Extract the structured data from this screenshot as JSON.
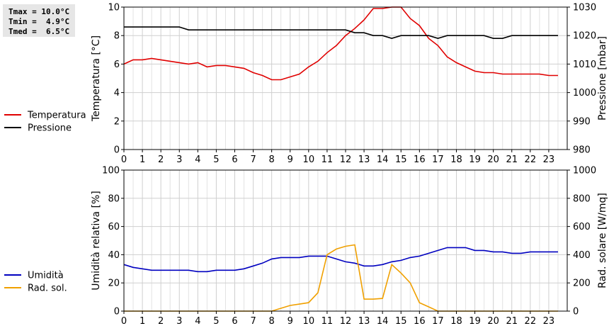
{
  "stats": [
    {
      "label": "Tmax",
      "value": "10.0°C"
    },
    {
      "label": "Tmin",
      "value": "4.9°C"
    },
    {
      "label": "Tmed",
      "value": "6.5°C"
    }
  ],
  "chart_data": [
    {
      "type": "line",
      "xlabel": "",
      "xlim": [
        0,
        24
      ],
      "xticks": [
        "0",
        "1",
        "2",
        "3",
        "4",
        "5",
        "6",
        "7",
        "8",
        "9",
        "10",
        "11",
        "12",
        "13",
        "14",
        "15",
        "16",
        "17",
        "18",
        "19",
        "20",
        "21",
        "22",
        "23"
      ],
      "ylabel_left": "Temperatura [°C]",
      "ylim_left": [
        0,
        10
      ],
      "yticks_left": [
        "0",
        "2",
        "4",
        "6",
        "8",
        "10"
      ],
      "ylabel_right": "Pressione [mbar]",
      "ylim_right": [
        980,
        1030
      ],
      "yticks_right": [
        "980",
        "990",
        "1000",
        "1010",
        "1020",
        "1030"
      ],
      "grid": true,
      "legend_position": "left",
      "series": [
        {
          "name": "Temperatura",
          "axis": "left",
          "color": "#e00000",
          "x": [
            0,
            0.5,
            1,
            1.5,
            2,
            2.5,
            3,
            3.5,
            4,
            4.5,
            5,
            5.5,
            6,
            6.5,
            7,
            7.5,
            8,
            8.5,
            9,
            9.5,
            10,
            10.5,
            11,
            11.5,
            12,
            12.5,
            13,
            13.5,
            14,
            14.5,
            15,
            15.5,
            16,
            16.5,
            17,
            17.5,
            18,
            18.5,
            19,
            19.5,
            20,
            20.5,
            21,
            21.5,
            22,
            22.5,
            23,
            23.5
          ],
          "values": [
            6.0,
            6.3,
            6.3,
            6.4,
            6.3,
            6.2,
            6.1,
            6.0,
            6.1,
            5.8,
            5.9,
            5.9,
            5.8,
            5.7,
            5.4,
            5.2,
            4.9,
            4.9,
            5.1,
            5.3,
            5.8,
            6.2,
            6.8,
            7.3,
            8.0,
            8.5,
            9.1,
            9.9,
            9.9,
            10.0,
            10.0,
            9.2,
            8.7,
            7.8,
            7.3,
            6.5,
            6.1,
            5.8,
            5.5,
            5.4,
            5.4,
            5.3,
            5.3,
            5.3,
            5.3,
            5.3,
            5.2,
            5.2
          ]
        },
        {
          "name": "Pressione",
          "axis": "right",
          "color": "#000000",
          "x": [
            0,
            0.5,
            1,
            1.5,
            2,
            2.5,
            3,
            3.5,
            4,
            4.5,
            5,
            5.5,
            6,
            6.5,
            7,
            7.5,
            8,
            8.5,
            9,
            9.5,
            10,
            10.5,
            11,
            11.5,
            12,
            12.5,
            13,
            13.5,
            14,
            14.5,
            15,
            15.5,
            16,
            16.5,
            17,
            17.5,
            18,
            18.5,
            19,
            19.5,
            20,
            20.5,
            21,
            21.5,
            22,
            22.5,
            23,
            23.5
          ],
          "values": [
            1023,
            1023,
            1023,
            1023,
            1023,
            1023,
            1023,
            1022,
            1022,
            1022,
            1022,
            1022,
            1022,
            1022,
            1022,
            1022,
            1022,
            1022,
            1022,
            1022,
            1022,
            1022,
            1022,
            1022,
            1022,
            1021,
            1021,
            1020,
            1020,
            1019,
            1020,
            1020,
            1020,
            1020,
            1019,
            1020,
            1020,
            1020,
            1020,
            1020,
            1019,
            1019,
            1020,
            1020,
            1020,
            1020,
            1020,
            1020
          ]
        }
      ]
    },
    {
      "type": "line",
      "xlabel": "",
      "xlim": [
        0,
        24
      ],
      "xticks": [
        "0",
        "1",
        "2",
        "3",
        "4",
        "5",
        "6",
        "7",
        "8",
        "9",
        "10",
        "11",
        "12",
        "13",
        "14",
        "15",
        "16",
        "17",
        "18",
        "19",
        "20",
        "21",
        "22",
        "23"
      ],
      "ylabel_left": "Umidità relativa [%]",
      "ylim_left": [
        0,
        100
      ],
      "yticks_left": [
        "0",
        "20",
        "40",
        "60",
        "80",
        "100"
      ],
      "ylabel_right": "Rad. solare [W/mq]",
      "ylim_right": [
        0,
        1000
      ],
      "yticks_right": [
        "0",
        "200",
        "400",
        "600",
        "800",
        "1000"
      ],
      "grid": true,
      "legend_position": "left",
      "series": [
        {
          "name": "Umidità",
          "axis": "left",
          "color": "#0000c0",
          "x": [
            0,
            0.5,
            1,
            1.5,
            2,
            2.5,
            3,
            3.5,
            4,
            4.5,
            5,
            5.5,
            6,
            6.5,
            7,
            7.5,
            8,
            8.5,
            9,
            9.5,
            10,
            10.5,
            11,
            11.5,
            12,
            12.5,
            13,
            13.5,
            14,
            14.5,
            15,
            15.5,
            16,
            16.5,
            17,
            17.5,
            18,
            18.5,
            19,
            19.5,
            20,
            20.5,
            21,
            21.5,
            22,
            22.5,
            23,
            23.5
          ],
          "values": [
            33,
            31,
            30,
            29,
            29,
            29,
            29,
            29,
            28,
            28,
            29,
            29,
            29,
            30,
            32,
            34,
            37,
            38,
            38,
            38,
            39,
            39,
            39,
            37,
            35,
            34,
            32,
            32,
            33,
            35,
            36,
            38,
            39,
            41,
            43,
            45,
            45,
            45,
            43,
            43,
            42,
            42,
            41,
            41,
            42,
            42,
            42,
            42
          ]
        },
        {
          "name": "Rad. sol.",
          "axis": "right",
          "color": "#f0a000",
          "x": [
            0,
            0.5,
            1,
            1.5,
            2,
            2.5,
            3,
            3.5,
            4,
            4.5,
            5,
            5.5,
            6,
            6.5,
            7,
            7.5,
            8,
            8.5,
            9,
            9.5,
            10,
            10.5,
            11,
            11.5,
            12,
            12.5,
            13,
            13.5,
            14,
            14.5,
            15,
            15.5,
            16,
            16.5,
            17,
            17.5,
            18,
            18.5,
            19,
            19.5,
            20,
            20.5,
            21,
            21.5,
            22,
            22.5,
            23,
            23.5
          ],
          "values": [
            0,
            0,
            0,
            0,
            0,
            0,
            0,
            0,
            0,
            0,
            0,
            0,
            0,
            0,
            0,
            0,
            0,
            20,
            40,
            50,
            60,
            130,
            400,
            440,
            460,
            470,
            85,
            85,
            90,
            330,
            270,
            200,
            60,
            30,
            0,
            0,
            0,
            0,
            0,
            0,
            0,
            0,
            0,
            0,
            0,
            0,
            0,
            0
          ]
        }
      ]
    }
  ]
}
